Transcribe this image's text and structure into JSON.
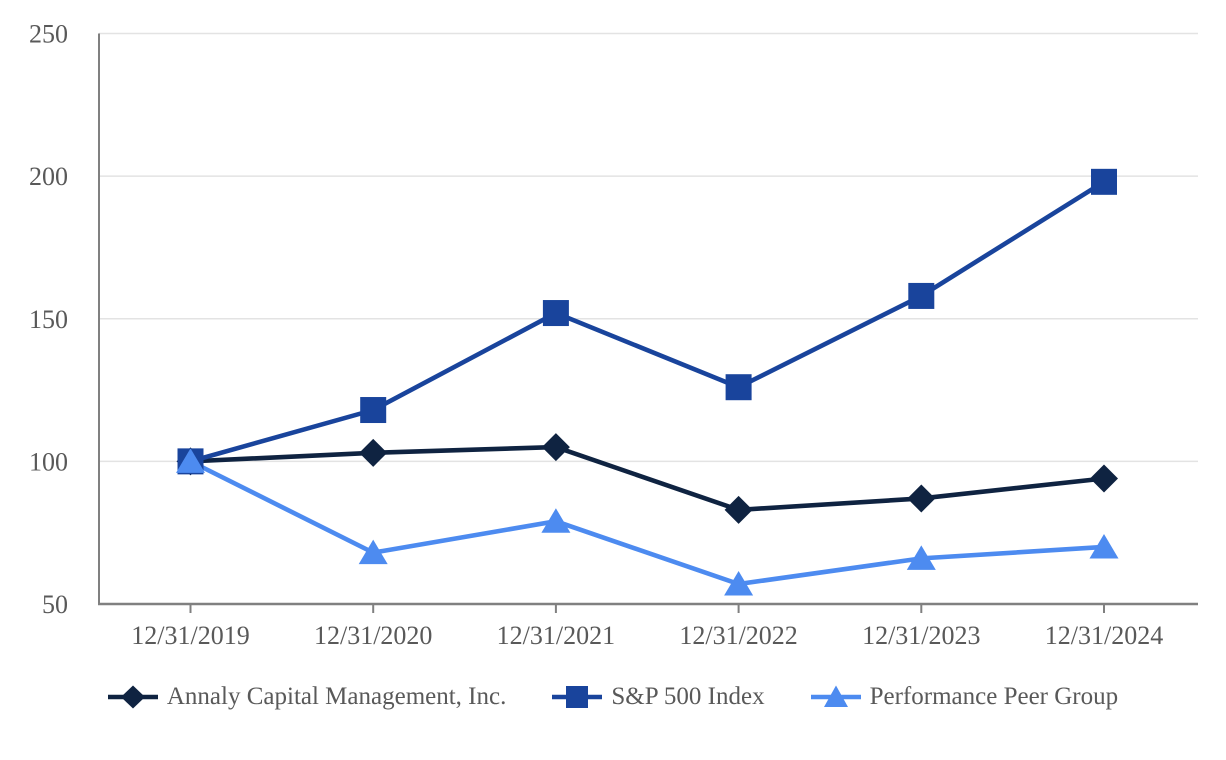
{
  "chart_data": {
    "type": "line",
    "title": "",
    "categories": [
      "12/31/2019",
      "12/31/2020",
      "12/31/2021",
      "12/31/2022",
      "12/31/2023",
      "12/31/2024"
    ],
    "series": [
      {
        "key": "annaly",
        "name": "Annaly Capital Management, Inc.",
        "marker": "diamond",
        "color": "#0F2341",
        "values": [
          100,
          103,
          105,
          83,
          87,
          94
        ]
      },
      {
        "key": "sp500",
        "name": "S&P 500 Index",
        "marker": "square",
        "color": "#19449C",
        "values": [
          100,
          118,
          152,
          126,
          158,
          198
        ]
      },
      {
        "key": "peer",
        "name": "Performance Peer Group",
        "marker": "triangle",
        "color": "#4D8BF0",
        "values": [
          100,
          68,
          79,
          57,
          66,
          70
        ]
      }
    ],
    "xlabel": "",
    "ylabel": "",
    "ylim": [
      50,
      250
    ],
    "yticks": [
      50,
      100,
      150,
      200,
      250
    ],
    "grid": true,
    "legend_position": "bottom"
  },
  "style": {
    "axis_color": "#808080",
    "grid_color": "#E3E3E3",
    "text_color": "#595959"
  }
}
